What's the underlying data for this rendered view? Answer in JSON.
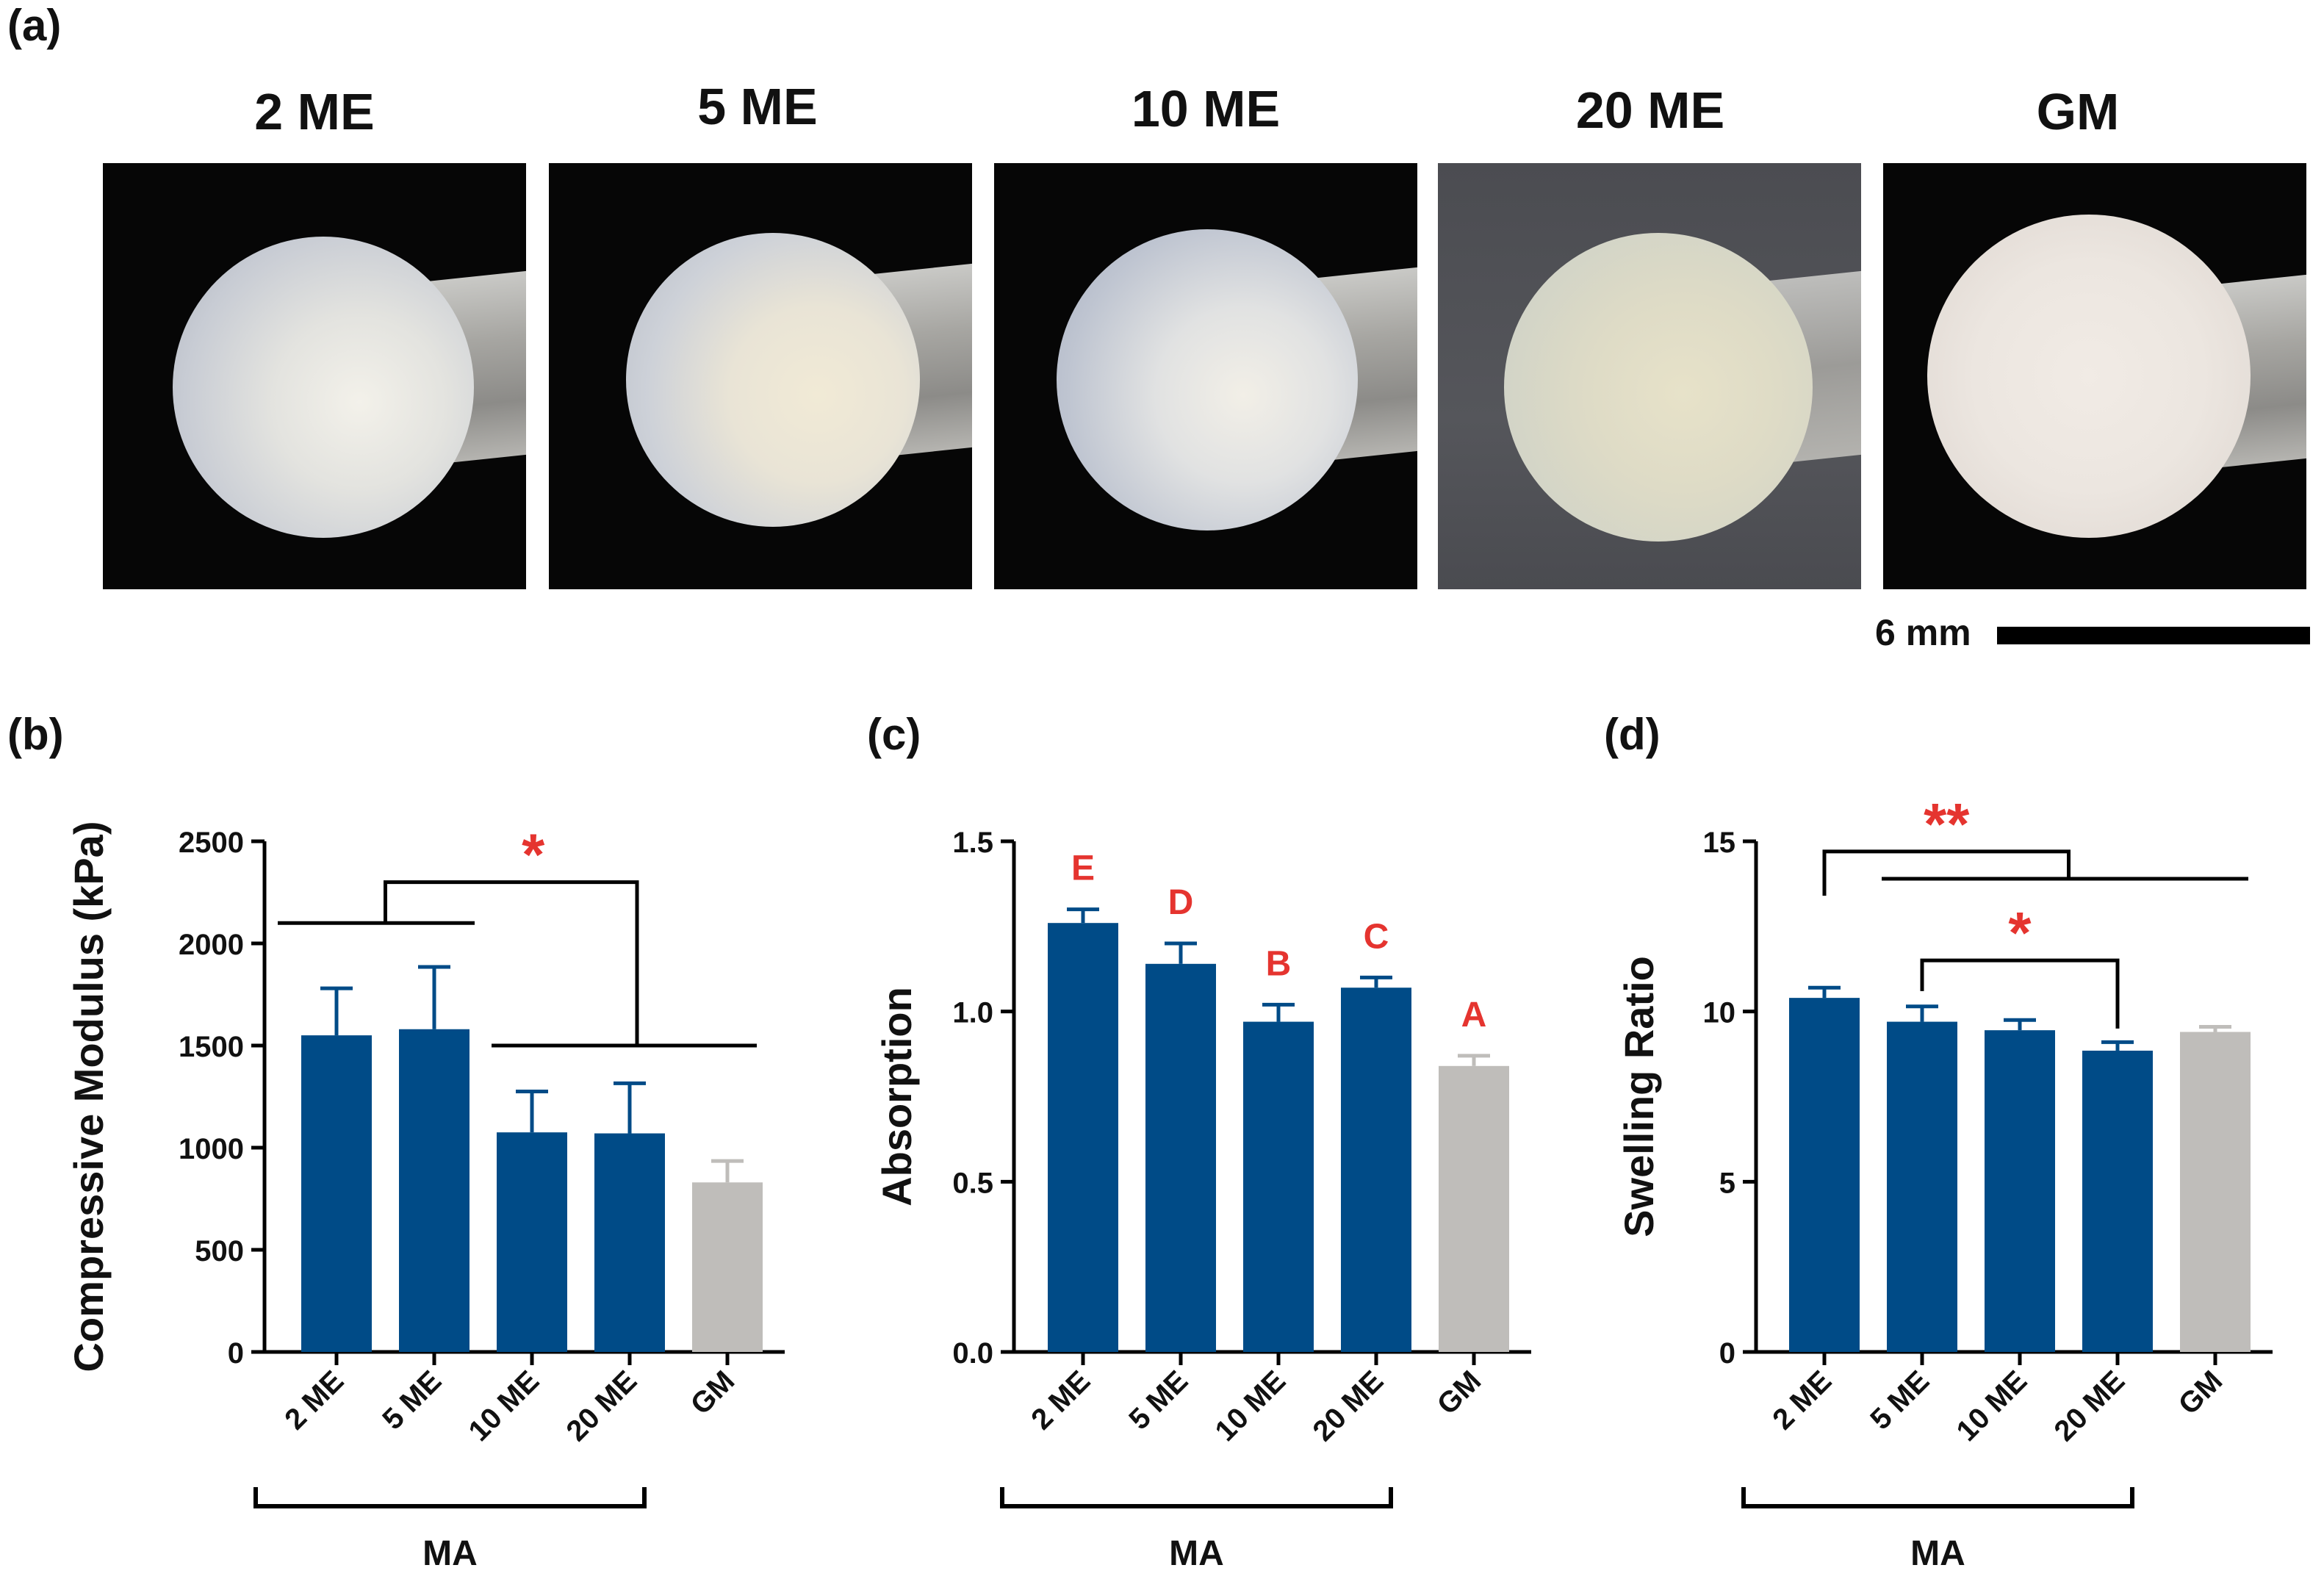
{
  "panels": {
    "a": "(a)",
    "b": "(b)",
    "c": "(c)",
    "d": "(d)"
  },
  "photos": [
    {
      "label": "2 ME"
    },
    {
      "label": "5 ME"
    },
    {
      "label": "10 ME"
    },
    {
      "label": "20 ME"
    },
    {
      "label": "GM"
    }
  ],
  "scale_bar": {
    "label": "6 mm"
  },
  "colors": {
    "ma_bar": "#004b87",
    "gm_bar": "#bfbdba",
    "significance": "#e5342f",
    "axis": "#000000"
  },
  "chart_data": [
    {
      "type": "bar",
      "panel": "(b)",
      "categories": [
        "2 ME",
        "5 ME",
        "10 ME",
        "20 ME",
        "GM"
      ],
      "values": [
        1550,
        1580,
        1075,
        1070,
        830
      ],
      "errors": [
        230,
        305,
        200,
        245,
        105
      ],
      "ylabel": "Compressive Modulus (kPa)",
      "ylim": [
        0,
        2500
      ],
      "yticks": [
        "0",
        "500",
        "1000",
        "1500",
        "2000",
        "2500"
      ],
      "group_label": "MA",
      "annotations": [
        "*"
      ]
    },
    {
      "type": "bar",
      "panel": "(c)",
      "categories": [
        "2 ME",
        "5 ME",
        "10 ME",
        "20 ME",
        "GM"
      ],
      "values": [
        1.26,
        1.14,
        0.97,
        1.07,
        0.84
      ],
      "errors": [
        0.04,
        0.06,
        0.05,
        0.03,
        0.03
      ],
      "ylabel": "Absorption",
      "ylim": [
        0,
        1.5
      ],
      "yticks": [
        "0.0",
        "0.5",
        "1.0",
        "1.5"
      ],
      "group_label": "MA",
      "letters": [
        "E",
        "D",
        "B",
        "C",
        "A"
      ]
    },
    {
      "type": "bar",
      "panel": "(d)",
      "categories": [
        "2 ME",
        "5 ME",
        "10 ME",
        "20 ME",
        "GM"
      ],
      "values": [
        10.4,
        9.7,
        9.45,
        8.85,
        9.4
      ],
      "errors": [
        0.3,
        0.45,
        0.3,
        0.25,
        0.15
      ],
      "ylabel": "Swelling Ratio",
      "ylim": [
        0,
        15
      ],
      "yticks": [
        "0",
        "5",
        "10",
        "15"
      ],
      "group_label": "MA",
      "annotations": [
        "**",
        "*"
      ]
    }
  ]
}
